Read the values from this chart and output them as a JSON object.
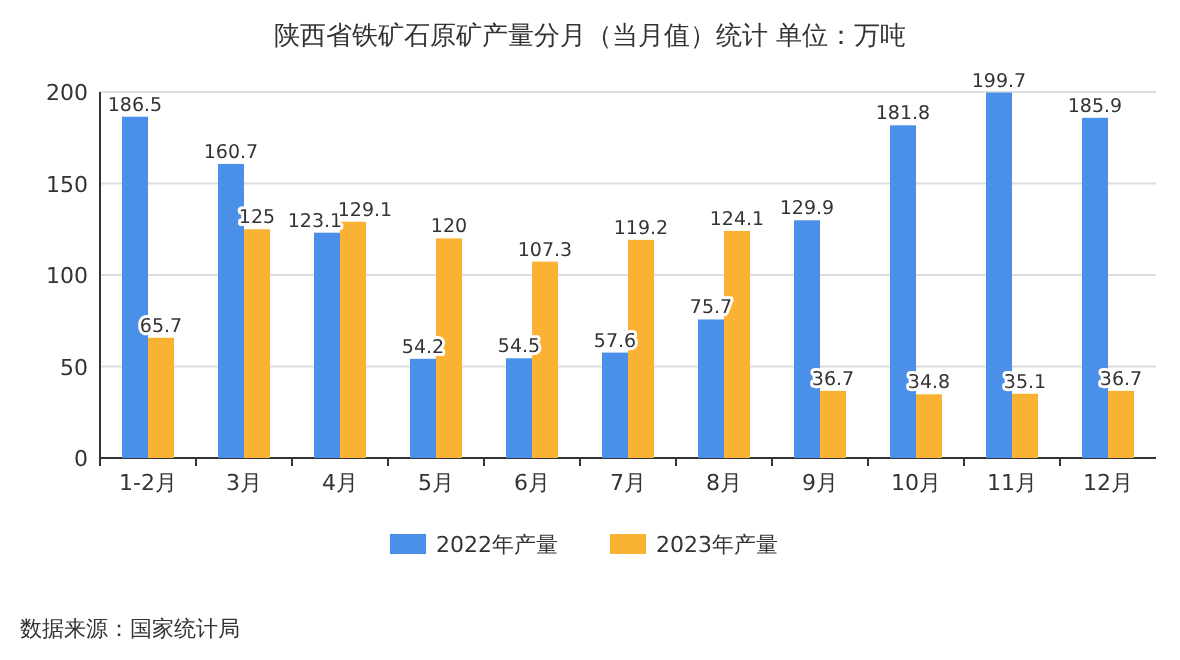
{
  "chart_data": {
    "type": "bar",
    "title": "陕西省铁矿石原矿产量分月（当月值）统计  单位：万吨",
    "categories": [
      "1-2月",
      "3月",
      "4月",
      "5月",
      "6月",
      "7月",
      "8月",
      "9月",
      "10月",
      "11月",
      "12月"
    ],
    "series": [
      {
        "name": "2022年产量",
        "color": "#4a8fe8",
        "values": [
          186.5,
          160.7,
          123.1,
          54.2,
          54.5,
          57.6,
          75.7,
          129.9,
          181.8,
          199.7,
          185.9
        ]
      },
      {
        "name": "2023年产量",
        "color": "#f9b233",
        "values": [
          65.7,
          125,
          129.1,
          120,
          107.3,
          119.2,
          124.1,
          36.7,
          34.8,
          35.1,
          36.7
        ]
      }
    ],
    "ylim": [
      0,
      200
    ],
    "yticks": [
      0,
      50,
      100,
      150,
      200
    ],
    "grid": "y",
    "legend": "bottom",
    "data_labels": true,
    "annotations": [
      "数据来源：国家统计局"
    ]
  }
}
